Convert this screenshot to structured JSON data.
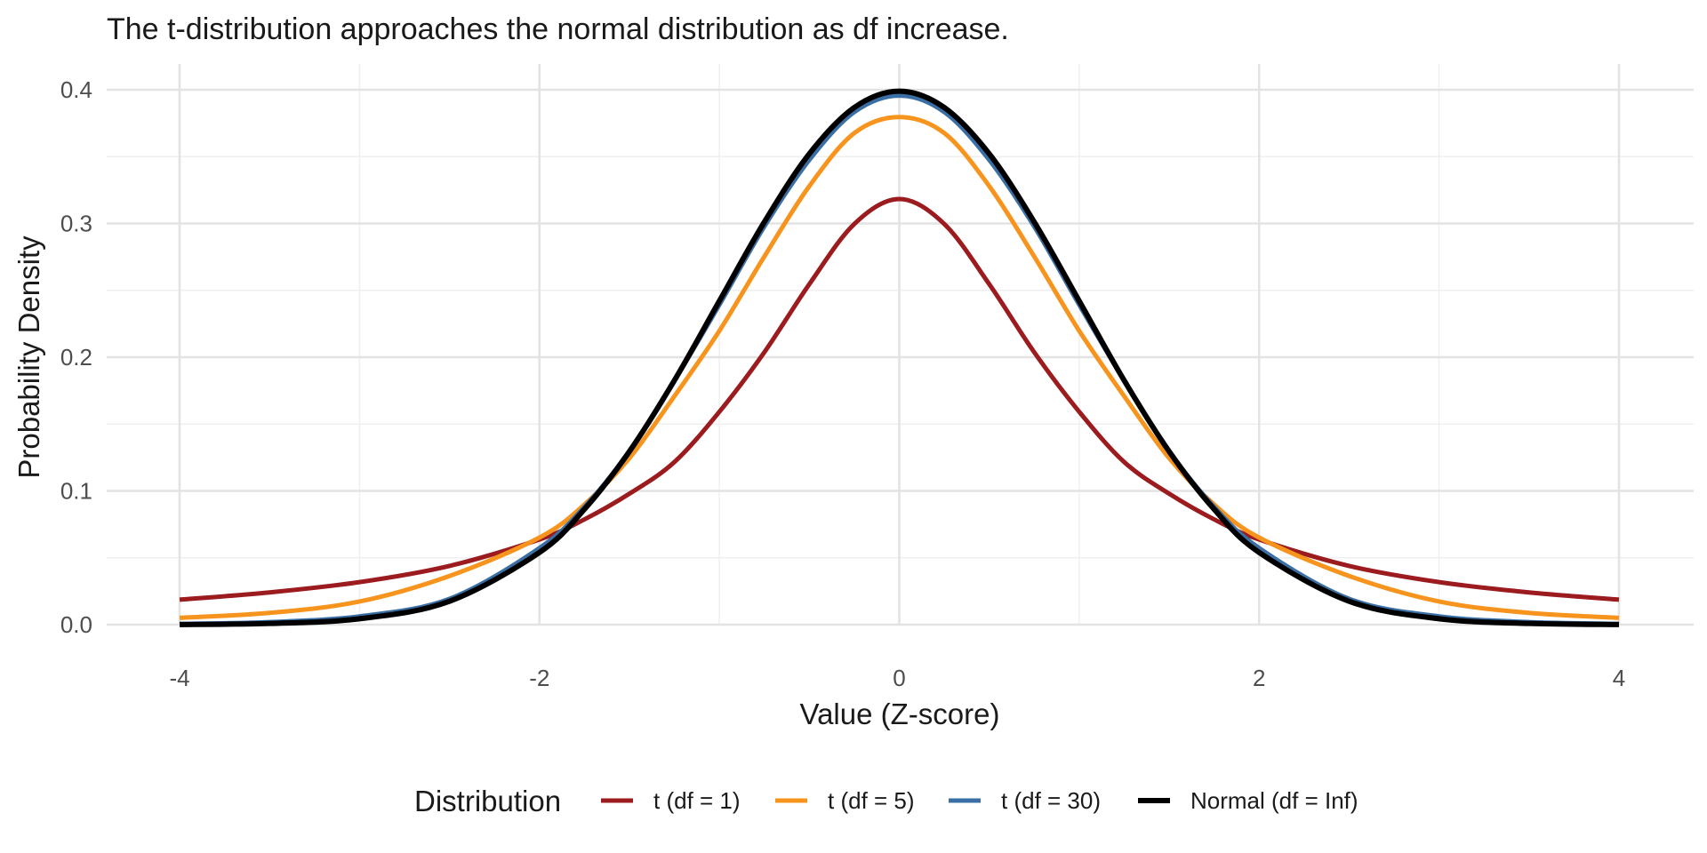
{
  "chart_data": {
    "type": "line",
    "title": "The t-distribution approaches the normal distribution as df increase.",
    "xlabel": "Value (Z-score)",
    "ylabel": "Probability Density",
    "xlim": [
      -4,
      4
    ],
    "ylim": [
      0,
      0.4
    ],
    "x_ticks": [
      -4,
      -2,
      0,
      2,
      4
    ],
    "x_tick_labels": [
      "-4",
      "-2",
      "0",
      "2",
      "4"
    ],
    "y_ticks": [
      0,
      0.1,
      0.2,
      0.3,
      0.4
    ],
    "y_tick_labels": [
      "0.0",
      "0.1",
      "0.2",
      "0.3",
      "0.4"
    ],
    "grid": true,
    "legend": {
      "title": "Distribution",
      "position": "bottom"
    },
    "x": [
      -4,
      -3.5,
      -3,
      -2.5,
      -2,
      -1.75,
      -1.5,
      -1.25,
      -1,
      -0.75,
      -0.5,
      -0.25,
      0,
      0.25,
      0.5,
      0.75,
      1,
      1.25,
      1.5,
      1.75,
      2,
      2.5,
      3,
      3.5,
      4
    ],
    "series": [
      {
        "name": "t (df = 1)",
        "color": "#9b1b1f",
        "values": [
          0.0187,
          0.0241,
          0.0318,
          0.0439,
          0.0637,
          0.0787,
          0.0979,
          0.1216,
          0.1592,
          0.2037,
          0.2546,
          0.2996,
          0.3183,
          0.2996,
          0.2546,
          0.2037,
          0.1592,
          0.1216,
          0.0979,
          0.0787,
          0.0637,
          0.0439,
          0.0318,
          0.0241,
          0.0187
        ]
      },
      {
        "name": "t (df = 5)",
        "color": "#f7941d",
        "values": [
          0.0051,
          0.0088,
          0.0173,
          0.0364,
          0.0651,
          0.0898,
          0.1245,
          0.1708,
          0.2197,
          0.2753,
          0.3279,
          0.3676,
          0.3796,
          0.3676,
          0.3279,
          0.2753,
          0.2197,
          0.1708,
          0.1245,
          0.0898,
          0.0651,
          0.0364,
          0.0173,
          0.0088,
          0.0051
        ]
      },
      {
        "name": "t (df = 30)",
        "color": "#3a6fa5",
        "values": [
          0.0006,
          0.0019,
          0.0062,
          0.0193,
          0.0573,
          0.088,
          0.1298,
          0.1824,
          0.2392,
          0.2977,
          0.3475,
          0.3833,
          0.3956,
          0.3833,
          0.3475,
          0.2977,
          0.2392,
          0.1824,
          0.1298,
          0.088,
          0.0573,
          0.0193,
          0.0062,
          0.0019,
          0.0006
        ]
      },
      {
        "name": "Normal (df = Inf)",
        "color": "#000000",
        "values": [
          0.0001,
          0.0009,
          0.0044,
          0.0175,
          0.054,
          0.0863,
          0.1295,
          0.1826,
          0.242,
          0.3011,
          0.3521,
          0.3867,
          0.3989,
          0.3867,
          0.3521,
          0.3011,
          0.242,
          0.1826,
          0.1295,
          0.0863,
          0.054,
          0.0175,
          0.0044,
          0.0009,
          0.0001
        ]
      }
    ]
  }
}
